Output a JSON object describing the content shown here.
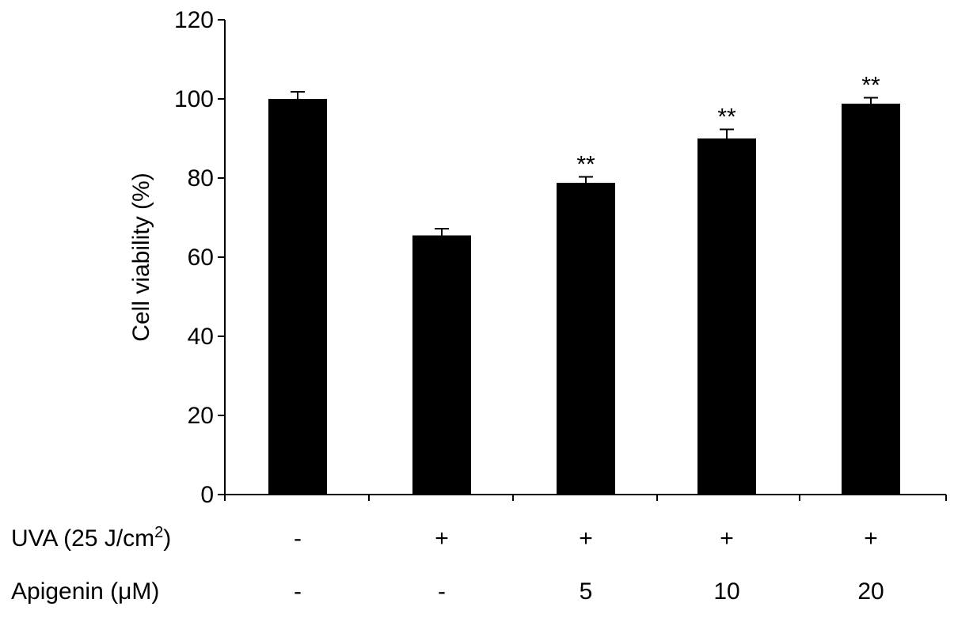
{
  "chart_data": {
    "type": "bar",
    "ylabel": "Cell viability (%)",
    "ylim": [
      0,
      120
    ],
    "yticks": [
      0,
      20,
      40,
      60,
      80,
      100,
      120
    ],
    "values": [
      100,
      65.5,
      78.8,
      90.0,
      98.8
    ],
    "errors": [
      1.8,
      1.7,
      1.5,
      2.3,
      1.5
    ],
    "significance": [
      "",
      "",
      "**",
      "**",
      "**"
    ],
    "bar_color": "#000000",
    "grid": false,
    "conditions": [
      {
        "label_main": "UVA (25 J/cm",
        "label_sup": "2",
        "label_end": ")",
        "values": [
          "-",
          "+",
          "+",
          "+",
          "+"
        ]
      },
      {
        "label_main": "Apigenin (μM)",
        "label_sup": "",
        "label_end": "",
        "values": [
          "-",
          "-",
          "5",
          "10",
          "20"
        ]
      }
    ]
  }
}
